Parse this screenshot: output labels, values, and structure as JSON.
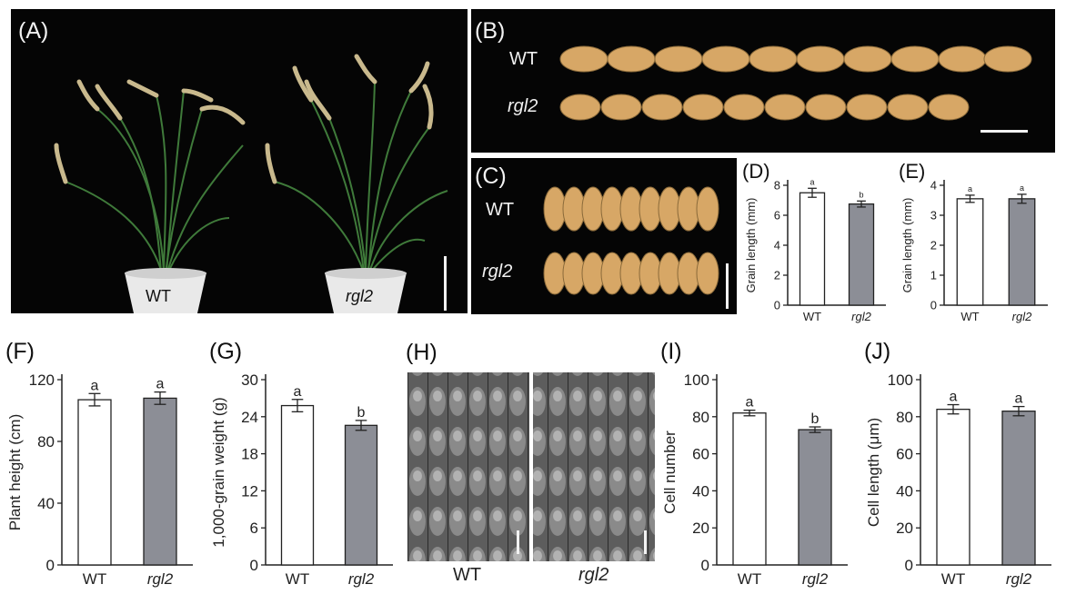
{
  "colors": {
    "wt_bar": "#ffffff",
    "mutant_bar": "#8c8e96",
    "photo_bg": "#050505",
    "axis": "#222222"
  },
  "panel_A": {
    "label": "(A)",
    "pot_left": "WT",
    "pot_right": "rgl2"
  },
  "panel_B": {
    "label": "(B)",
    "row1": "WT",
    "row2": "rgl2"
  },
  "panel_C": {
    "label": "(C)",
    "row1": "WT",
    "row2": "rgl2"
  },
  "panel_H": {
    "label": "(H)",
    "left": "WT",
    "right": "rgl2"
  },
  "chart_data": [
    {
      "id": "D",
      "panel_label": "(D)",
      "type": "bar",
      "categories": [
        "WT",
        "rgl2"
      ],
      "values": [
        7.5,
        6.75
      ],
      "errors": [
        0.3,
        0.2
      ],
      "sig": [
        "a",
        "b"
      ],
      "ylabel": "Grain length (mm)",
      "ylim": [
        0,
        8
      ],
      "yticks": [
        0,
        2,
        4,
        6,
        8
      ]
    },
    {
      "id": "E",
      "panel_label": "(E)",
      "type": "bar",
      "categories": [
        "WT",
        "rgl2"
      ],
      "values": [
        3.55,
        3.55
      ],
      "errors": [
        0.12,
        0.15
      ],
      "sig": [
        "a",
        "a"
      ],
      "ylabel": "Grain length (mm)",
      "ylim": [
        0,
        4
      ],
      "yticks": [
        0,
        1,
        2,
        3,
        4
      ]
    },
    {
      "id": "F",
      "panel_label": "(F)",
      "type": "bar",
      "categories": [
        "WT",
        "rgl2"
      ],
      "values": [
        107,
        108
      ],
      "errors": [
        4,
        4
      ],
      "sig": [
        "a",
        "a"
      ],
      "ylabel": "Plant height (cm)",
      "ylim": [
        0,
        120
      ],
      "yticks": [
        0,
        40,
        80,
        120
      ]
    },
    {
      "id": "G",
      "panel_label": "(G)",
      "type": "bar",
      "categories": [
        "WT",
        "rgl2"
      ],
      "values": [
        25.8,
        22.6
      ],
      "errors": [
        1.0,
        0.8
      ],
      "sig": [
        "a",
        "b"
      ],
      "ylabel": "1,000-grain weight (g)",
      "ylim": [
        0,
        30
      ],
      "yticks": [
        0,
        6,
        12,
        18,
        24,
        30
      ]
    },
    {
      "id": "I",
      "panel_label": "(I)",
      "type": "bar",
      "categories": [
        "WT",
        "rgl2"
      ],
      "values": [
        82,
        73
      ],
      "errors": [
        1.5,
        1.5
      ],
      "sig": [
        "a",
        "b"
      ],
      "ylabel": "Cell number",
      "ylim": [
        0,
        100
      ],
      "yticks": [
        0,
        20,
        40,
        60,
        80,
        100
      ]
    },
    {
      "id": "J",
      "panel_label": "(J)",
      "type": "bar",
      "categories": [
        "WT",
        "rgl2"
      ],
      "values": [
        84,
        83
      ],
      "errors": [
        2.5,
        2.5
      ],
      "sig": [
        "a",
        "a"
      ],
      "ylabel": "Cell length (μm)",
      "ylim": [
        0,
        100
      ],
      "yticks": [
        0,
        20,
        40,
        60,
        80,
        100
      ]
    }
  ]
}
